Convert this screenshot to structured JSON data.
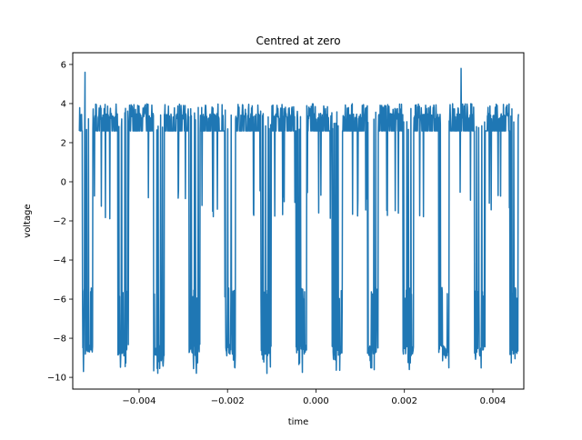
{
  "chart_data": {
    "type": "line",
    "title": "Centred at zero",
    "xlabel": "time",
    "ylabel": "voltage",
    "xlim": [
      -0.0055,
      0.0047
    ],
    "ylim": [
      -10.6,
      6.6
    ],
    "xticks": [
      -0.004,
      -0.002,
      0.0,
      0.002,
      0.004
    ],
    "xtick_labels": [
      "−0.004",
      "−0.002",
      "0.000",
      "0.002",
      "0.004"
    ],
    "yticks": [
      -10,
      -8,
      -6,
      -4,
      -2,
      0,
      2,
      4,
      6
    ],
    "ytick_labels": [
      "−10",
      "−8",
      "−6",
      "−4",
      "−2",
      "0",
      "2",
      "4",
      "6"
    ],
    "grid": false,
    "series": [
      {
        "color": "#1f77b4",
        "baseline_high": 2.6,
        "noise_high_range": [
          2.6,
          4.0
        ],
        "low_range": [
          -9.8,
          -6.0
        ],
        "period": 0.000806,
        "phase_start": -0.00535,
        "low_duty": 0.3,
        "x_range": [
          -0.00535,
          0.00458
        ],
        "spikes": [
          {
            "x": -0.00522,
            "y": 5.6
          },
          {
            "x": 0.00328,
            "y": 5.8
          }
        ]
      }
    ]
  }
}
